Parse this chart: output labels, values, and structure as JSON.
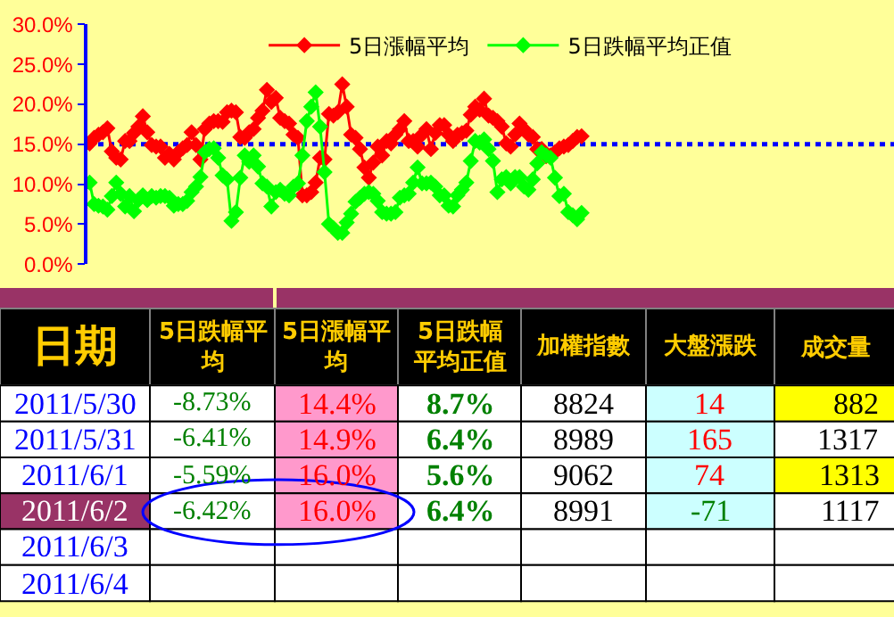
{
  "chart_data": [
    {
      "type": "line",
      "categories": [
        null,
        null,
        null,
        null,
        null,
        null,
        null,
        null,
        null,
        null,
        null,
        null,
        null,
        null,
        null,
        null,
        null,
        null,
        null,
        null,
        null,
        null,
        null,
        null,
        null,
        null,
        null,
        null,
        null,
        null,
        null,
        null,
        null,
        null,
        null,
        null,
        null,
        null,
        null,
        null,
        null,
        null,
        null,
        null,
        null,
        null,
        null,
        null,
        null,
        null,
        null,
        null,
        null,
        null,
        null,
        null,
        null,
        null,
        null,
        null,
        null,
        null,
        null,
        null,
        null,
        null,
        null,
        null,
        null,
        null,
        null,
        null,
        null,
        null,
        null,
        null,
        null,
        null,
        null,
        null,
        null,
        null,
        null,
        null,
        null,
        null,
        null,
        null,
        null,
        null,
        null,
        null,
        null,
        null,
        null,
        null,
        null,
        null,
        null,
        null,
        null,
        null,
        null,
        null,
        null,
        null,
        null,
        null,
        null,
        null,
        null,
        null,
        null,
        null,
        null,
        null,
        null,
        null,
        null,
        null,
        null,
        null,
        null,
        null,
        null,
        null,
        null,
        null,
        null,
        null,
        null,
        null,
        null,
        null,
        null,
        null,
        null,
        null,
        null,
        null,
        null,
        null,
        null,
        null,
        null,
        null,
        null,
        null,
        null,
        null,
        null,
        null,
        null,
        null,
        null,
        null,
        null,
        null,
        null,
        null,
        null,
        null,
        null,
        null,
        null,
        null,
        null,
        null,
        null,
        null,
        null,
        null,
        null,
        null,
        null,
        null,
        null,
        null,
        null,
        null,
        null,
        null
      ],
      "series": [
        {
          "name": "5日漲幅平均",
          "color": "#ff0000",
          "values": [
            15.1,
            15.8,
            16.2,
            16.5,
            17.0,
            14.1,
            13.3,
            13.1,
            15.4,
            15.4,
            16.4,
            17.2,
            18.5,
            16.5,
            14.9,
            14.7,
            14.7,
            13.3,
            13.8,
            13.1,
            14.0,
            14.5,
            14.9,
            16.5,
            14.9,
            13.1,
            16.9,
            17.6,
            17.9,
            17.9,
            17.8,
            19.0,
            19.2,
            19.0,
            15.9,
            15.8,
            16.5,
            16.9,
            18.3,
            19.2,
            21.8,
            20.3,
            20.8,
            18.3,
            17.9,
            17.6,
            16.2,
            15.8,
            8.6,
            8.6,
            9.0,
            10.2,
            13.3,
            13.1,
            18.8,
            18.6,
            19.0,
            22.5,
            19.7,
            16.2,
            15.8,
            14.4,
            12.1,
            10.8,
            12.7,
            14.7,
            13.6,
            15.4,
            15.1,
            16.2,
            16.9,
            17.9,
            15.4,
            15.4,
            14.7,
            16.2,
            16.9,
            14.4,
            16.4,
            17.4,
            17.4,
            16.2,
            15.4,
            16.2,
            16.4,
            16.7,
            18.7,
            19.7,
            19.3,
            20.7,
            18.6,
            18.3,
            17.9,
            17.2,
            15.1,
            14.7,
            16.2,
            17.6,
            16.9,
            16.2,
            15.9,
            14.4,
            14.4,
            13.5,
            13.6,
            14.0,
            14.5,
            14.7,
            14.9,
            15.4,
            15.9,
            16.0,
            null,
            null,
            null,
            null,
            null,
            null,
            null,
            null,
            null,
            null,
            null,
            null,
            null,
            null,
            null,
            null,
            null,
            null,
            null,
            null,
            null,
            null,
            null,
            null,
            null,
            null,
            null,
            null,
            null,
            null,
            null,
            null,
            null,
            null,
            null,
            null,
            null,
            null,
            null,
            null,
            null,
            null,
            null,
            null,
            null,
            null,
            null,
            null,
            null,
            null,
            null,
            null,
            null,
            null,
            null,
            null,
            null,
            null,
            null,
            null,
            null,
            null,
            null,
            null,
            null,
            null,
            null,
            null,
            null,
            null
          ]
        },
        {
          "name": "5日跌幅平均正值",
          "color": "#00ff00",
          "values": [
            10.2,
            7.5,
            7.3,
            7.2,
            6.8,
            8.5,
            10.2,
            8.8,
            7.2,
            8.5,
            6.6,
            8.0,
            8.6,
            8.0,
            8.5,
            8.3,
            8.5,
            8.5,
            8.3,
            7.3,
            7.5,
            7.5,
            7.9,
            9.0,
            9.7,
            10.9,
            14.0,
            14.4,
            14.5,
            13.3,
            11.1,
            10.6,
            5.4,
            6.5,
            10.8,
            13.6,
            12.8,
            13.6,
            12.2,
            10.1,
            9.7,
            7.2,
            9.0,
            9.3,
            8.8,
            8.6,
            9.7,
            10.1,
            13.6,
            17.9,
            19.7,
            21.5,
            17.2,
            11.5,
            5.0,
            4.5,
            3.9,
            3.9,
            5.2,
            6.3,
            7.8,
            8.3,
            8.8,
            9.0,
            8.8,
            7.9,
            6.5,
            6.3,
            6.3,
            6.5,
            8.3,
            8.6,
            8.8,
            10.2,
            12.1,
            10.1,
            10.1,
            10.2,
            9.7,
            8.6,
            8.6,
            7.3,
            7.2,
            8.6,
            9.3,
            10.2,
            12.9,
            15.4,
            15.2,
            15.6,
            14.4,
            12.9,
            9.0,
            10.6,
            10.9,
            10.1,
            10.9,
            10.9,
            9.7,
            9.3,
            10.6,
            12.6,
            14.0,
            13.6,
            13.3,
            10.8,
            8.5,
            8.8,
            6.5,
            6.1,
            5.6,
            6.4,
            null,
            null,
            null,
            null,
            null,
            null,
            null,
            null,
            null,
            null,
            null,
            null,
            null,
            null,
            null,
            null,
            null,
            null,
            null,
            null,
            null,
            null,
            null,
            null,
            null,
            null,
            null,
            null,
            null,
            null,
            null,
            null,
            null,
            null,
            null,
            null,
            null,
            null,
            null,
            null,
            null,
            null,
            null,
            null,
            null,
            null,
            null,
            null,
            null,
            null,
            null,
            null,
            null,
            null,
            null,
            null,
            null,
            null,
            null,
            null,
            null,
            null,
            null,
            null,
            null,
            null,
            null,
            null,
            null,
            null
          ]
        }
      ],
      "ylim": [
        0,
        30
      ],
      "yticks": [
        {
          "value": 0,
          "label": "0.0%"
        },
        {
          "value": 5,
          "label": "5.0%"
        },
        {
          "value": 10,
          "label": "10.0%"
        },
        {
          "value": 15,
          "label": "15.0%"
        },
        {
          "value": 20,
          "label": "20.0%"
        },
        {
          "value": 25,
          "label": "25.0%"
        },
        {
          "value": 30,
          "label": "30.0%"
        }
      ],
      "tick_labels": "y",
      "grid": false,
      "legend": "top",
      "marker": "diamond",
      "line_style": "solid",
      "ref_lines": [
        {
          "axis": "y",
          "value": 15,
          "label": null,
          "color": "#0000ff",
          "line_style": "dotted"
        }
      ]
    },
    {
      "type": "other",
      "categories": [
        "日期",
        "5日跌幅平均",
        "5日漲幅平均",
        "5日跌幅平均正值",
        "加權指數",
        "大盤漲跌",
        "成交量"
      ],
      "y_categories": [
        "2011/5/30",
        "2011/5/31",
        "2011/6/1",
        "2011/6/2",
        "2011/6/3",
        "2011/6/4"
      ],
      "cell_labels": [
        [
          "-8.73%",
          "14.4%",
          "8.7%",
          "8824",
          "14",
          "882"
        ],
        [
          "-6.41%",
          "14.9%",
          "6.4%",
          "8989",
          "165",
          "1317"
        ],
        [
          "-5.59%",
          "16.0%",
          "5.6%",
          "9062",
          "74",
          "1313"
        ],
        [
          "-6.42%",
          "16.0%",
          "6.4%",
          "8991",
          "-71",
          "1117"
        ],
        [
          null,
          null,
          null,
          null,
          null,
          null
        ],
        [
          null,
          null,
          null,
          null,
          null,
          null
        ]
      ]
    }
  ]
}
